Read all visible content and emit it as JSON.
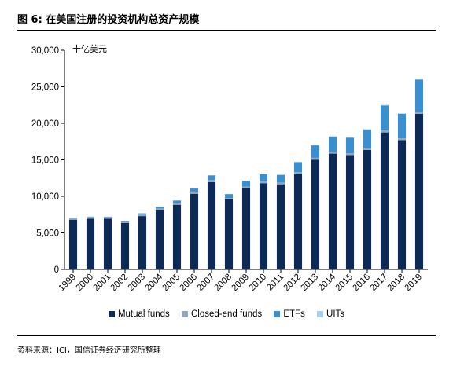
{
  "figure": {
    "title": "图 6:  在美国注册的投资机构总资产规模",
    "source": "资料来源：ICI，国信证券经济研究所整理"
  },
  "colors": {
    "mutual_funds": "#0d2a56",
    "closed_end_funds": "#8fa6bf",
    "etfs": "#3a8fd1",
    "uits": "#a9cfee"
  },
  "chart_data": {
    "type": "bar",
    "stacked": true,
    "unit_label": "十亿美元",
    "categories": [
      "1999",
      "2000",
      "2001",
      "2002",
      "2003",
      "2004",
      "2005",
      "2006",
      "2007",
      "2008",
      "2009",
      "2010",
      "2011",
      "2012",
      "2013",
      "2014",
      "2015",
      "2016",
      "2017",
      "2018",
      "2019"
    ],
    "series": [
      {
        "name": "Mutual funds",
        "values": [
          6800,
          6950,
          6950,
          6350,
          7300,
          8100,
          8850,
          10350,
          11950,
          9600,
          11100,
          11800,
          11650,
          13050,
          15000,
          15850,
          15650,
          16350,
          18750,
          17700,
          21300
        ]
      },
      {
        "name": "Closed-end funds",
        "values": [
          150,
          150,
          150,
          150,
          220,
          250,
          270,
          300,
          300,
          180,
          220,
          240,
          240,
          270,
          280,
          280,
          260,
          260,
          270,
          250,
          280
        ]
      },
      {
        "name": "ETFs",
        "values": [
          30,
          70,
          80,
          100,
          150,
          230,
          300,
          420,
          600,
          530,
          780,
          990,
          1040,
          1350,
          1700,
          2000,
          2100,
          2500,
          3400,
          3350,
          4400
        ]
      },
      {
        "name": "UITs",
        "values": [
          90,
          75,
          50,
          40,
          50,
          40,
          40,
          50,
          50,
          30,
          40,
          50,
          60,
          70,
          90,
          100,
          90,
          90,
          90,
          70,
          90
        ]
      }
    ],
    "ylim": [
      0,
      30000
    ],
    "yticks": [
      "0",
      "5,000",
      "10,000",
      "15,000",
      "20,000",
      "25,000",
      "30,000"
    ],
    "legend_position": "bottom"
  }
}
